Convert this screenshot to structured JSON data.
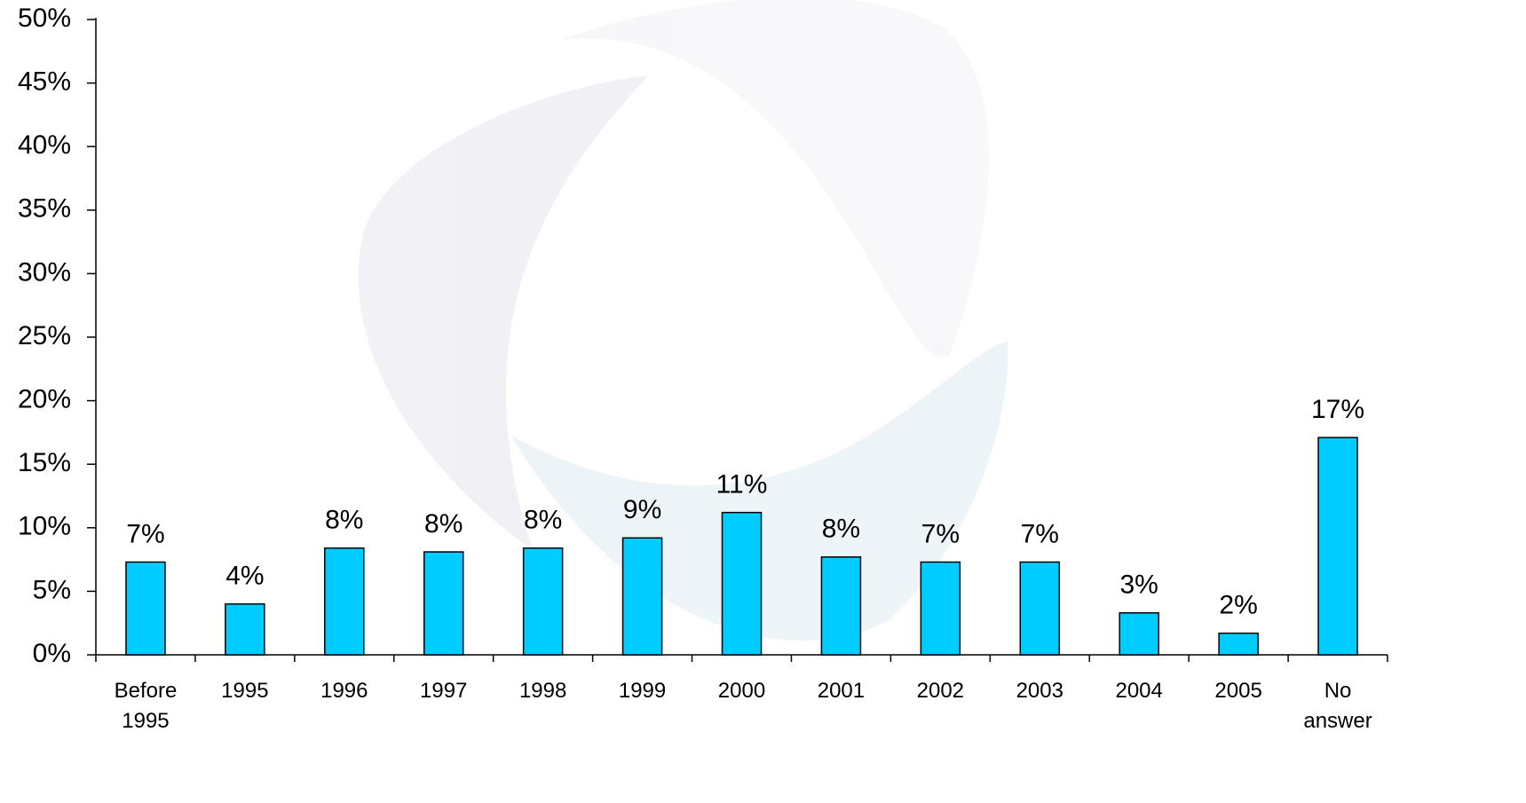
{
  "chart_data": {
    "type": "bar",
    "categories": [
      "Before 1995",
      "1995",
      "1996",
      "1997",
      "1998",
      "1999",
      "2000",
      "2001",
      "2002",
      "2003",
      "2004",
      "2005",
      "No answer"
    ],
    "values": [
      7.3,
      4.0,
      8.4,
      8.1,
      8.4,
      9.2,
      11.2,
      7.7,
      7.3,
      7.3,
      3.3,
      1.7,
      17.1
    ],
    "value_labels": [
      "7%",
      "4%",
      "8%",
      "8%",
      "8%",
      "9%",
      "11%",
      "8%",
      "7%",
      "7%",
      "3%",
      "2%",
      "17%"
    ],
    "color": "#00ccff",
    "ylim": [
      0,
      50
    ],
    "yticks": [
      {
        "value": 0,
        "label": "0%"
      },
      {
        "value": 5,
        "label": "5%"
      },
      {
        "value": 10,
        "label": "10%"
      },
      {
        "value": 15,
        "label": "15%"
      },
      {
        "value": 20,
        "label": "20%"
      },
      {
        "value": 25,
        "label": "25%"
      },
      {
        "value": 30,
        "label": "30%"
      },
      {
        "value": 35,
        "label": "35%"
      },
      {
        "value": 40,
        "label": "40%"
      },
      {
        "value": 45,
        "label": "45%"
      },
      {
        "value": 50,
        "label": "50%"
      }
    ],
    "grid": false
  }
}
